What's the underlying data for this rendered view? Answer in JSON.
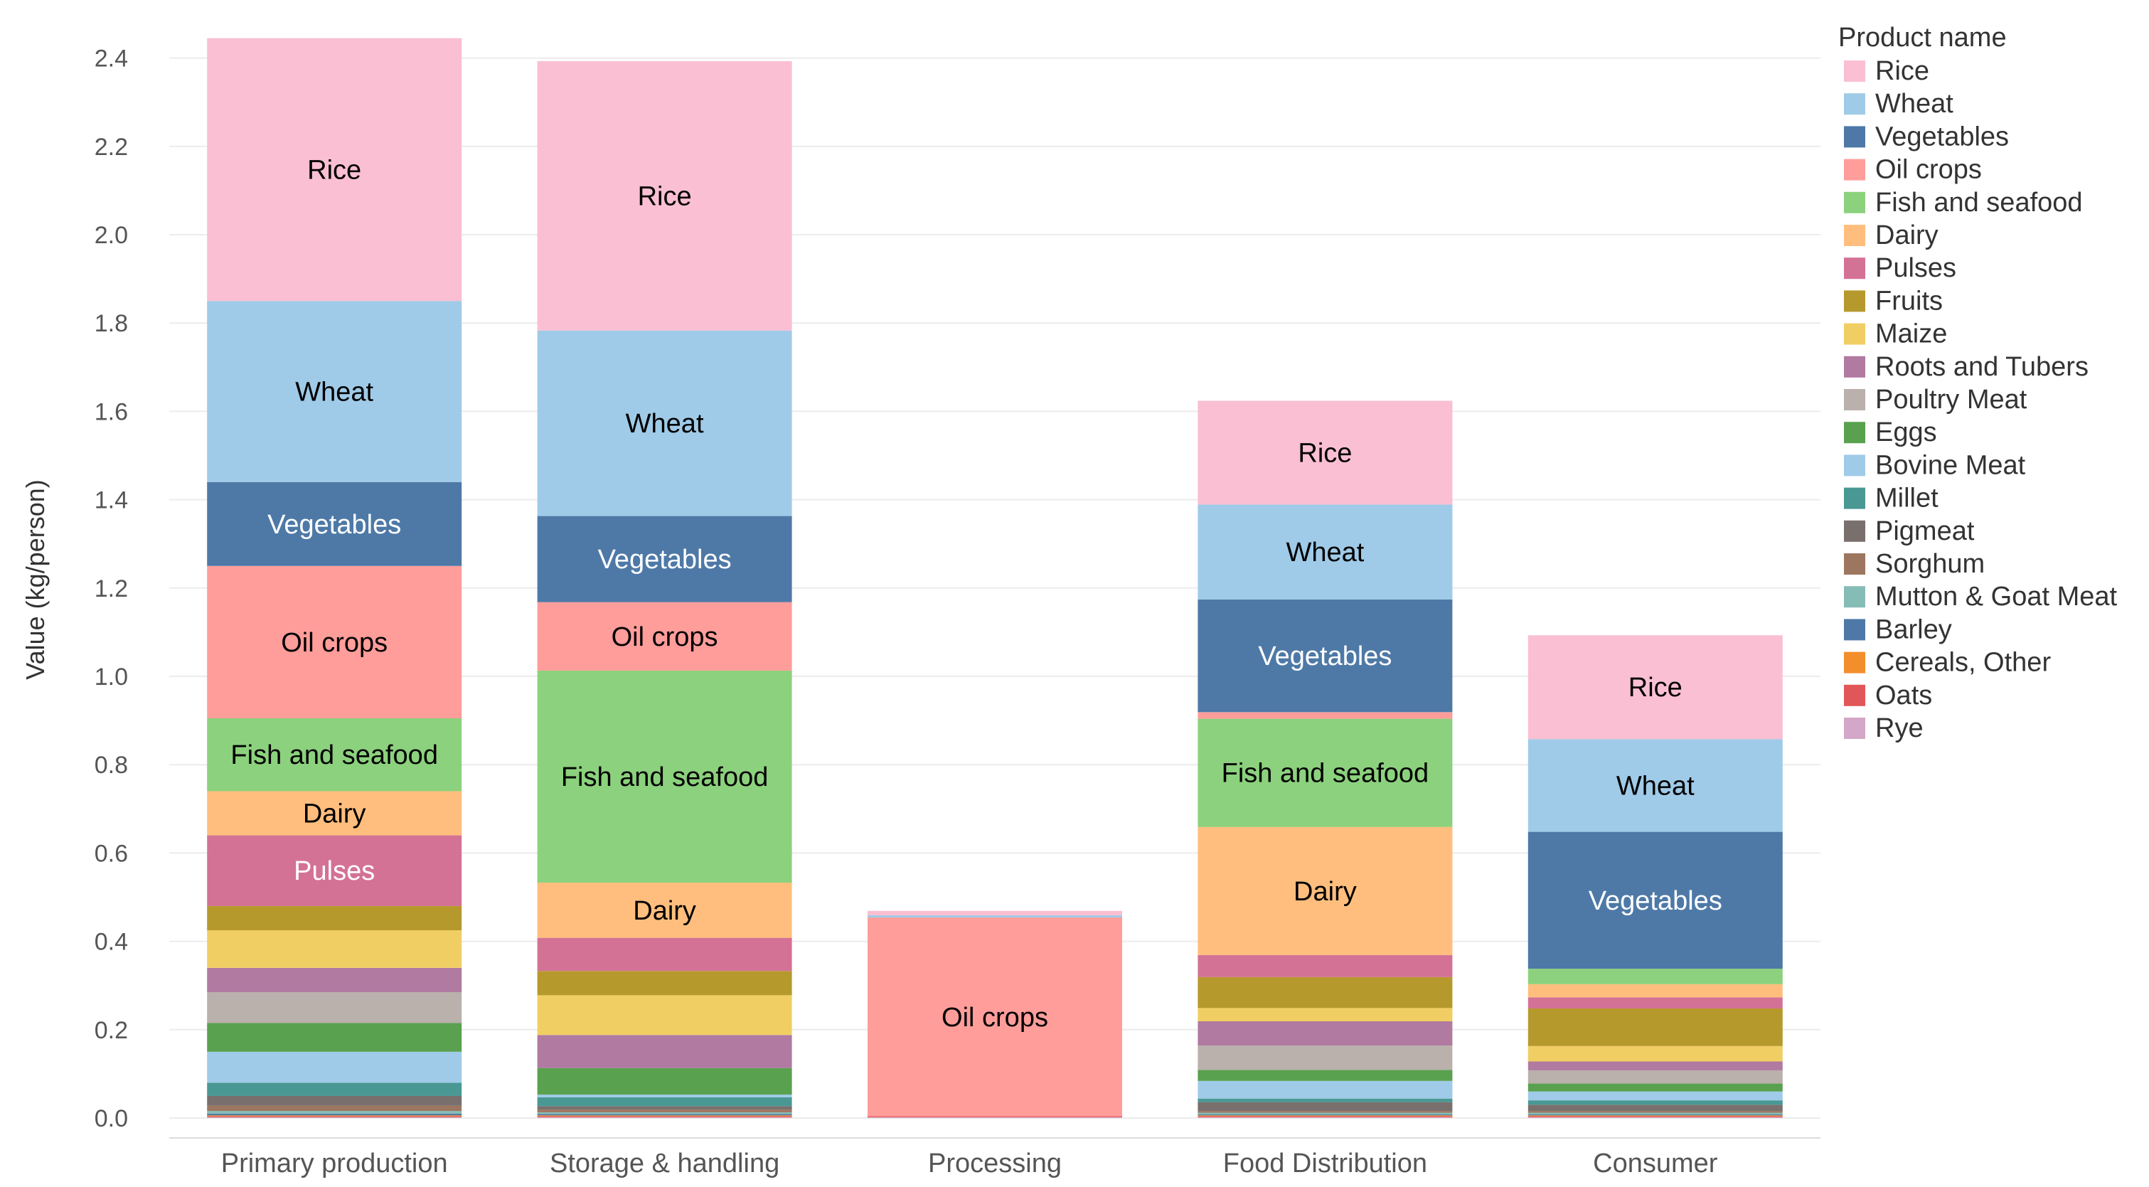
{
  "chart_data": {
    "type": "bar",
    "stacked": true,
    "title": "",
    "xlabel": "",
    "ylabel": "Value (kg/person)",
    "ylim": [
      -0.04,
      2.52
    ],
    "yticks": [
      0.0,
      0.2,
      0.4,
      0.6,
      0.8,
      1.0,
      1.2,
      1.4,
      1.6,
      1.8,
      2.0,
      2.2,
      2.4
    ],
    "ytick_labels": [
      "0.0",
      "0.2",
      "0.4",
      "0.6",
      "0.8",
      "1.0",
      "1.2",
      "1.4",
      "1.6",
      "1.8",
      "2.0",
      "2.2",
      "2.4"
    ],
    "categories": [
      "Primary production",
      "Storage & handling",
      "Processing",
      "Food Distribution",
      "Consumer"
    ],
    "legend": {
      "title": "Product name",
      "position": "right"
    },
    "series": [
      {
        "name": "Rye",
        "color": "#D4A6C8",
        "values": [
          0.002,
          0.002,
          0.002,
          0.002,
          0.002
        ]
      },
      {
        "name": "Oats",
        "color": "#E15759",
        "values": [
          0.002,
          0.002,
          0.002,
          0.002,
          0.002
        ]
      },
      {
        "name": "Cereals, Other",
        "color": "#F28E2B",
        "values": [
          0.002,
          0.002,
          0.0,
          0.002,
          0.002
        ]
      },
      {
        "name": "Barley",
        "color": "#4E79A7",
        "values": [
          0.004,
          0.003,
          0.0,
          0.002,
          0.002
        ]
      },
      {
        "name": "Mutton & Goat Meat",
        "color": "#86BCB6",
        "values": [
          0.006,
          0.004,
          0.0,
          0.004,
          0.004
        ]
      },
      {
        "name": "Sorghum",
        "color": "#9D7660",
        "values": [
          0.012,
          0.006,
          0.0,
          0.004,
          0.004
        ]
      },
      {
        "name": "Pigmeat",
        "color": "#79706E",
        "values": [
          0.022,
          0.008,
          0.0,
          0.02,
          0.014
        ]
      },
      {
        "name": "Millet",
        "color": "#499894",
        "values": [
          0.03,
          0.02,
          0.0,
          0.008,
          0.01
        ]
      },
      {
        "name": "Bovine Meat",
        "color": "#A0CBE8",
        "values": [
          0.07,
          0.006,
          0.0,
          0.04,
          0.02
        ]
      },
      {
        "name": "Eggs",
        "color": "#59A14F",
        "values": [
          0.065,
          0.06,
          0.0,
          0.025,
          0.018
        ]
      },
      {
        "name": "Poultry Meat",
        "color": "#BAB0AC",
        "values": [
          0.07,
          0.0,
          0.0,
          0.055,
          0.03
        ]
      },
      {
        "name": "Roots and Tubers",
        "color": "#B07AA1",
        "values": [
          0.055,
          0.075,
          0.0,
          0.055,
          0.02
        ]
      },
      {
        "name": "Maize",
        "color": "#F1CE63",
        "values": [
          0.085,
          0.09,
          0.0,
          0.03,
          0.035
        ]
      },
      {
        "name": "Fruits",
        "color": "#B6992D",
        "values": [
          0.055,
          0.055,
          0.0,
          0.07,
          0.085
        ]
      },
      {
        "name": "Pulses",
        "color": "#D37295",
        "values": [
          0.16,
          0.075,
          0.0,
          0.05,
          0.025
        ]
      },
      {
        "name": "Dairy",
        "color": "#FFBE7D",
        "values": [
          0.1,
          0.125,
          0.0,
          0.29,
          0.03
        ]
      },
      {
        "name": "Fish and seafood",
        "color": "#8CD17D",
        "values": [
          0.165,
          0.48,
          0.0,
          0.245,
          0.035
        ]
      },
      {
        "name": "Oil crops",
        "color": "#FF9D9A",
        "values": [
          0.345,
          0.155,
          0.45,
          0.015,
          0.0
        ]
      },
      {
        "name": "Vegetables",
        "color": "#4E79A7",
        "values": [
          0.19,
          0.195,
          0.0,
          0.255,
          0.31
        ]
      },
      {
        "name": "Wheat",
        "color": "#A0CBE8",
        "values": [
          0.41,
          0.42,
          0.005,
          0.215,
          0.21
        ]
      },
      {
        "name": "Rice",
        "color": "#FABFD2",
        "values": [
          0.595,
          0.61,
          0.01,
          0.235,
          0.235
        ]
      }
    ],
    "legend_order": [
      "Rice",
      "Wheat",
      "Vegetables",
      "Oil crops",
      "Fish and seafood",
      "Dairy",
      "Pulses",
      "Fruits",
      "Maize",
      "Roots and Tubers",
      "Poultry Meat",
      "Eggs",
      "Bovine Meat",
      "Millet",
      "Pigmeat",
      "Sorghum",
      "Mutton & Goat Meat",
      "Barley",
      "Cereals, Other",
      "Oats",
      "Rye"
    ],
    "annotations": [
      {
        "category": "Primary production",
        "series": "Rice",
        "text": "Rice",
        "color": "#000000"
      },
      {
        "category": "Primary production",
        "series": "Wheat",
        "text": "Wheat",
        "color": "#000000"
      },
      {
        "category": "Primary production",
        "series": "Vegetables",
        "text": "Vegetables",
        "color": "#ffffff"
      },
      {
        "category": "Primary production",
        "series": "Oil crops",
        "text": "Oil crops",
        "color": "#000000"
      },
      {
        "category": "Primary production",
        "series": "Fish and seafood",
        "text": "Fish and seafood",
        "color": "#000000"
      },
      {
        "category": "Primary production",
        "series": "Dairy",
        "text": "Dairy",
        "color": "#000000"
      },
      {
        "category": "Primary production",
        "series": "Pulses",
        "text": "Pulses",
        "color": "#ffffff"
      },
      {
        "category": "Storage & handling",
        "series": "Rice",
        "text": "Rice",
        "color": "#000000"
      },
      {
        "category": "Storage & handling",
        "series": "Wheat",
        "text": "Wheat",
        "color": "#000000"
      },
      {
        "category": "Storage & handling",
        "series": "Vegetables",
        "text": "Vegetables",
        "color": "#ffffff"
      },
      {
        "category": "Storage & handling",
        "series": "Oil crops",
        "text": "Oil crops",
        "color": "#000000"
      },
      {
        "category": "Storage & handling",
        "series": "Fish and seafood",
        "text": "Fish and seafood",
        "color": "#000000"
      },
      {
        "category": "Storage & handling",
        "series": "Dairy",
        "text": "Dairy",
        "color": "#000000"
      },
      {
        "category": "Processing",
        "series": "Oil crops",
        "text": "Oil crops",
        "color": "#000000"
      },
      {
        "category": "Food Distribution",
        "series": "Rice",
        "text": "Rice",
        "color": "#000000"
      },
      {
        "category": "Food Distribution",
        "series": "Wheat",
        "text": "Wheat",
        "color": "#000000"
      },
      {
        "category": "Food Distribution",
        "series": "Vegetables",
        "text": "Vegetables",
        "color": "#ffffff"
      },
      {
        "category": "Food Distribution",
        "series": "Fish and seafood",
        "text": "Fish and seafood",
        "color": "#000000"
      },
      {
        "category": "Food Distribution",
        "series": "Dairy",
        "text": "Dairy",
        "color": "#000000"
      },
      {
        "category": "Consumer",
        "series": "Rice",
        "text": "Rice",
        "color": "#000000"
      },
      {
        "category": "Consumer",
        "series": "Wheat",
        "text": "Wheat",
        "color": "#000000"
      },
      {
        "category": "Consumer",
        "series": "Vegetables",
        "text": "Vegetables",
        "color": "#ffffff"
      }
    ]
  }
}
